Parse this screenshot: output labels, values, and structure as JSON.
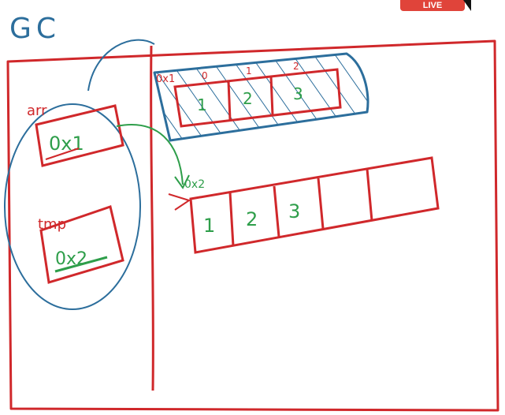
{
  "title": "GC",
  "live_badge": "LIVE",
  "colors": {
    "ink_red": "#d0282b",
    "ink_green": "#2e9e4a",
    "ink_blue": "#2c6e9c"
  },
  "stack": {
    "arr_label": "arr",
    "arr_value": "0x1",
    "tmp_label": "tmp",
    "tmp_value": "0x2"
  },
  "heap": {
    "old_array": {
      "address": "0x1",
      "indices": [
        "0",
        "1",
        "2"
      ],
      "values": [
        "1",
        "2",
        "3"
      ]
    },
    "new_array": {
      "address": "0x2",
      "values": [
        "1",
        "2",
        "3",
        "",
        ""
      ]
    }
  }
}
